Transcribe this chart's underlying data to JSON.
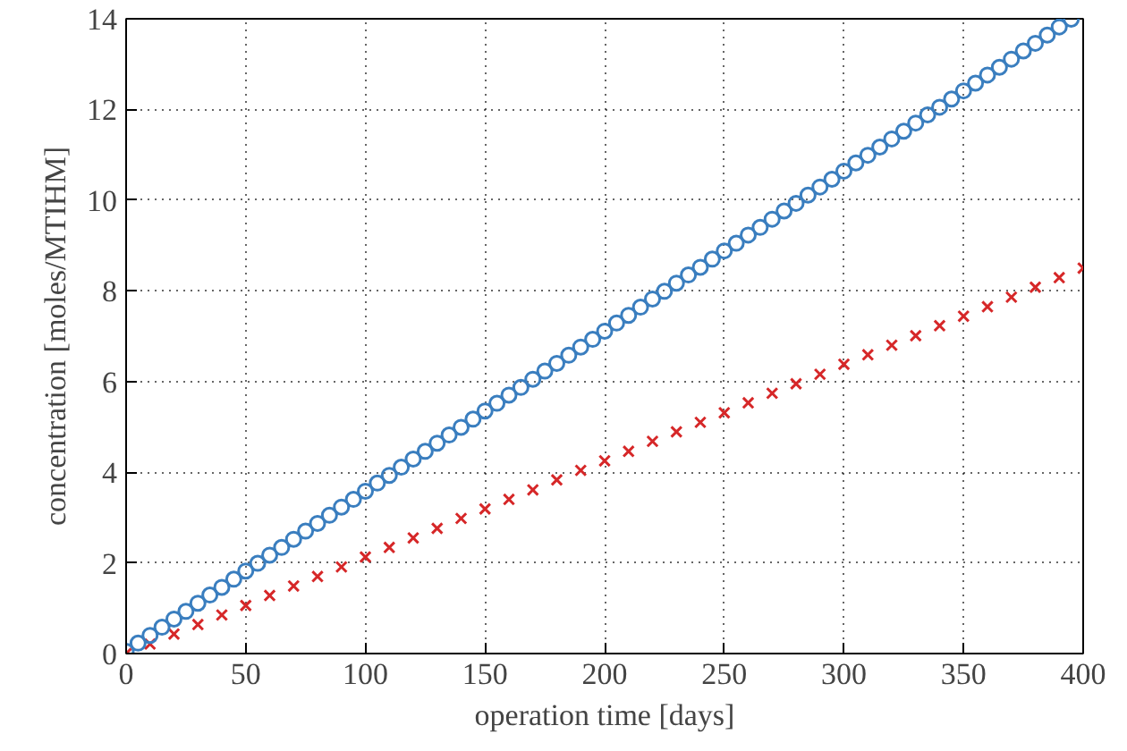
{
  "chart_data": {
    "type": "scatter",
    "xlabel": "operation time [days]",
    "ylabel": "concentration [moles/MTIHM]",
    "xlim": [
      0,
      400
    ],
    "ylim": [
      0,
      14
    ],
    "xticks": [
      0,
      50,
      100,
      150,
      200,
      250,
      300,
      350,
      400
    ],
    "yticks": [
      0,
      2,
      4,
      6,
      8,
      10,
      12,
      14
    ],
    "grid": true,
    "series": [
      {
        "color": "#d62728",
        "marker": "cross",
        "x": [
          0,
          10,
          20,
          30,
          40,
          50,
          60,
          70,
          80,
          90,
          100,
          110,
          120,
          130,
          140,
          150,
          160,
          170,
          180,
          190,
          200,
          210,
          220,
          230,
          240,
          250,
          260,
          270,
          280,
          290,
          300,
          310,
          320,
          330,
          340,
          350,
          360,
          370,
          380,
          390,
          400
        ],
        "values": [
          0,
          0.21,
          0.43,
          0.64,
          0.85,
          1.06,
          1.28,
          1.49,
          1.7,
          1.91,
          2.13,
          2.34,
          2.55,
          2.76,
          2.98,
          3.19,
          3.4,
          3.61,
          3.83,
          4.04,
          4.25,
          4.46,
          4.68,
          4.89,
          5.1,
          5.31,
          5.53,
          5.74,
          5.95,
          6.16,
          6.38,
          6.59,
          6.8,
          7.01,
          7.23,
          7.44,
          7.65,
          7.86,
          8.08,
          8.29,
          8.5
        ]
      },
      {
        "color": "#3a7ebf",
        "marker": "circle",
        "x": [
          0,
          5,
          10,
          15,
          20,
          25,
          30,
          35,
          40,
          45,
          50,
          55,
          60,
          65,
          70,
          75,
          80,
          85,
          90,
          95,
          100,
          105,
          110,
          115,
          120,
          125,
          130,
          135,
          140,
          145,
          150,
          155,
          160,
          165,
          170,
          175,
          180,
          185,
          190,
          195,
          200,
          205,
          210,
          215,
          220,
          225,
          230,
          235,
          240,
          245,
          250,
          255,
          260,
          265,
          270,
          275,
          280,
          285,
          290,
          295,
          300,
          305,
          310,
          315,
          320,
          325,
          330,
          335,
          340,
          345,
          350,
          355,
          360,
          365,
          370,
          375,
          380,
          385,
          390,
          395
        ],
        "values": [
          0.05,
          0.23,
          0.4,
          0.58,
          0.76,
          0.93,
          1.11,
          1.29,
          1.46,
          1.64,
          1.82,
          1.99,
          2.17,
          2.34,
          2.52,
          2.7,
          2.87,
          3.05,
          3.23,
          3.4,
          3.58,
          3.76,
          3.93,
          4.11,
          4.29,
          4.46,
          4.64,
          4.82,
          4.99,
          5.17,
          5.35,
          5.52,
          5.7,
          5.87,
          6.05,
          6.23,
          6.4,
          6.58,
          6.76,
          6.93,
          7.11,
          7.29,
          7.46,
          7.64,
          7.82,
          7.99,
          8.17,
          8.35,
          8.52,
          8.7,
          8.88,
          9.05,
          9.23,
          9.4,
          9.58,
          9.76,
          9.93,
          10.11,
          10.29,
          10.46,
          10.64,
          10.82,
          10.99,
          11.17,
          11.35,
          11.52,
          11.7,
          11.88,
          12.05,
          12.23,
          12.41,
          12.58,
          12.76,
          12.93,
          13.11,
          13.29,
          13.46,
          13.64,
          13.82,
          13.99
        ]
      }
    ]
  }
}
